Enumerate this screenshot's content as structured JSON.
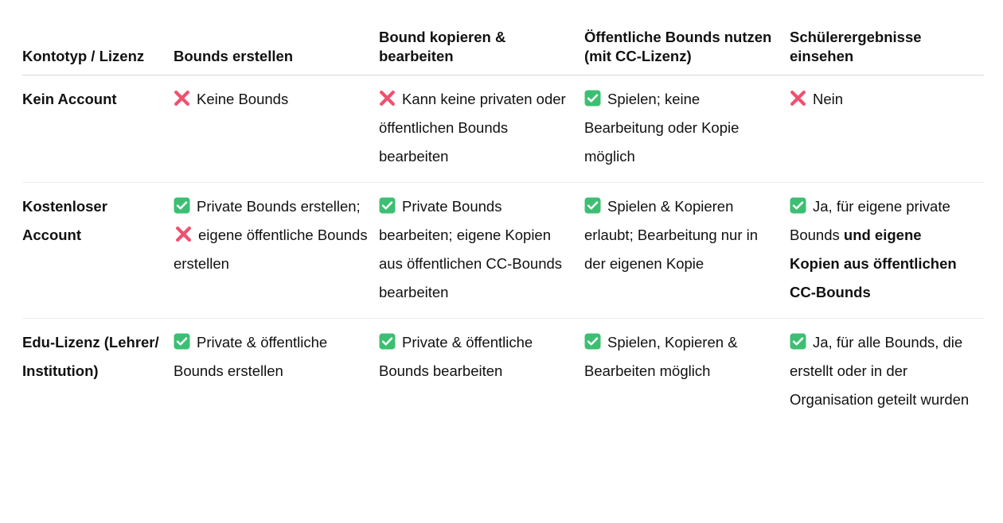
{
  "table": {
    "headers": [
      "Kontotyp / Lizenz",
      "Bounds erstellen",
      "Bound kopieren & bearbeiten",
      "Öffentliche Bounds nutzen (mit CC-Lizenz)",
      "Schülerergebnisse einsehen"
    ],
    "rows": [
      {
        "type": "Kein Account",
        "cells": [
          [
            {
              "icon": "cross"
            },
            {
              "text": "Keine Bounds"
            }
          ],
          [
            {
              "icon": "cross"
            },
            {
              "text": "Kann keine privaten oder öffentlichen Bounds bearbeiten"
            }
          ],
          [
            {
              "icon": "check"
            },
            {
              "text": "Spielen; keine Bearbeitung oder Kopie möglich"
            }
          ],
          [
            {
              "icon": "cross"
            },
            {
              "text": "Nein"
            }
          ]
        ]
      },
      {
        "type": "Kostenloser Account",
        "cells": [
          [
            {
              "icon": "check"
            },
            {
              "text": "Private Bounds erstellen; "
            },
            {
              "icon": "cross"
            },
            {
              "text": "eigene öffentliche Bounds erstellen"
            }
          ],
          [
            {
              "icon": "check"
            },
            {
              "text": "Private Bounds bearbeiten; eigene Kopien aus öffentlichen CC-Bounds bearbeiten"
            }
          ],
          [
            {
              "icon": "check"
            },
            {
              "text": "Spielen & Kopieren erlaubt; Bearbeitung nur in der eigenen Kopie"
            }
          ],
          [
            {
              "icon": "check"
            },
            {
              "text": "Ja, für eigene private Bounds "
            },
            {
              "text": "und eigene Kopien aus öffentlichen CC-Bounds",
              "bold": true
            }
          ]
        ]
      },
      {
        "type": "Edu-Lizenz (Lehrer/ Institution)",
        "cells": [
          [
            {
              "icon": "check"
            },
            {
              "text": "Private & öffentliche Bounds erstellen"
            }
          ],
          [
            {
              "icon": "check"
            },
            {
              "text": "Private & öffentliche Bounds bearbeiten"
            }
          ],
          [
            {
              "icon": "check"
            },
            {
              "text": "Spielen, Kopieren & Bearbeiten möglich"
            }
          ],
          [
            {
              "icon": "check"
            },
            {
              "text": "Ja, für alle Bounds, die erstellt oder in der Organisation geteilt wurden"
            }
          ]
        ]
      }
    ]
  },
  "colors": {
    "cross": "#f0506e",
    "check": "#3cbf72",
    "text": "#111111",
    "border": "#d9d9d9"
  }
}
